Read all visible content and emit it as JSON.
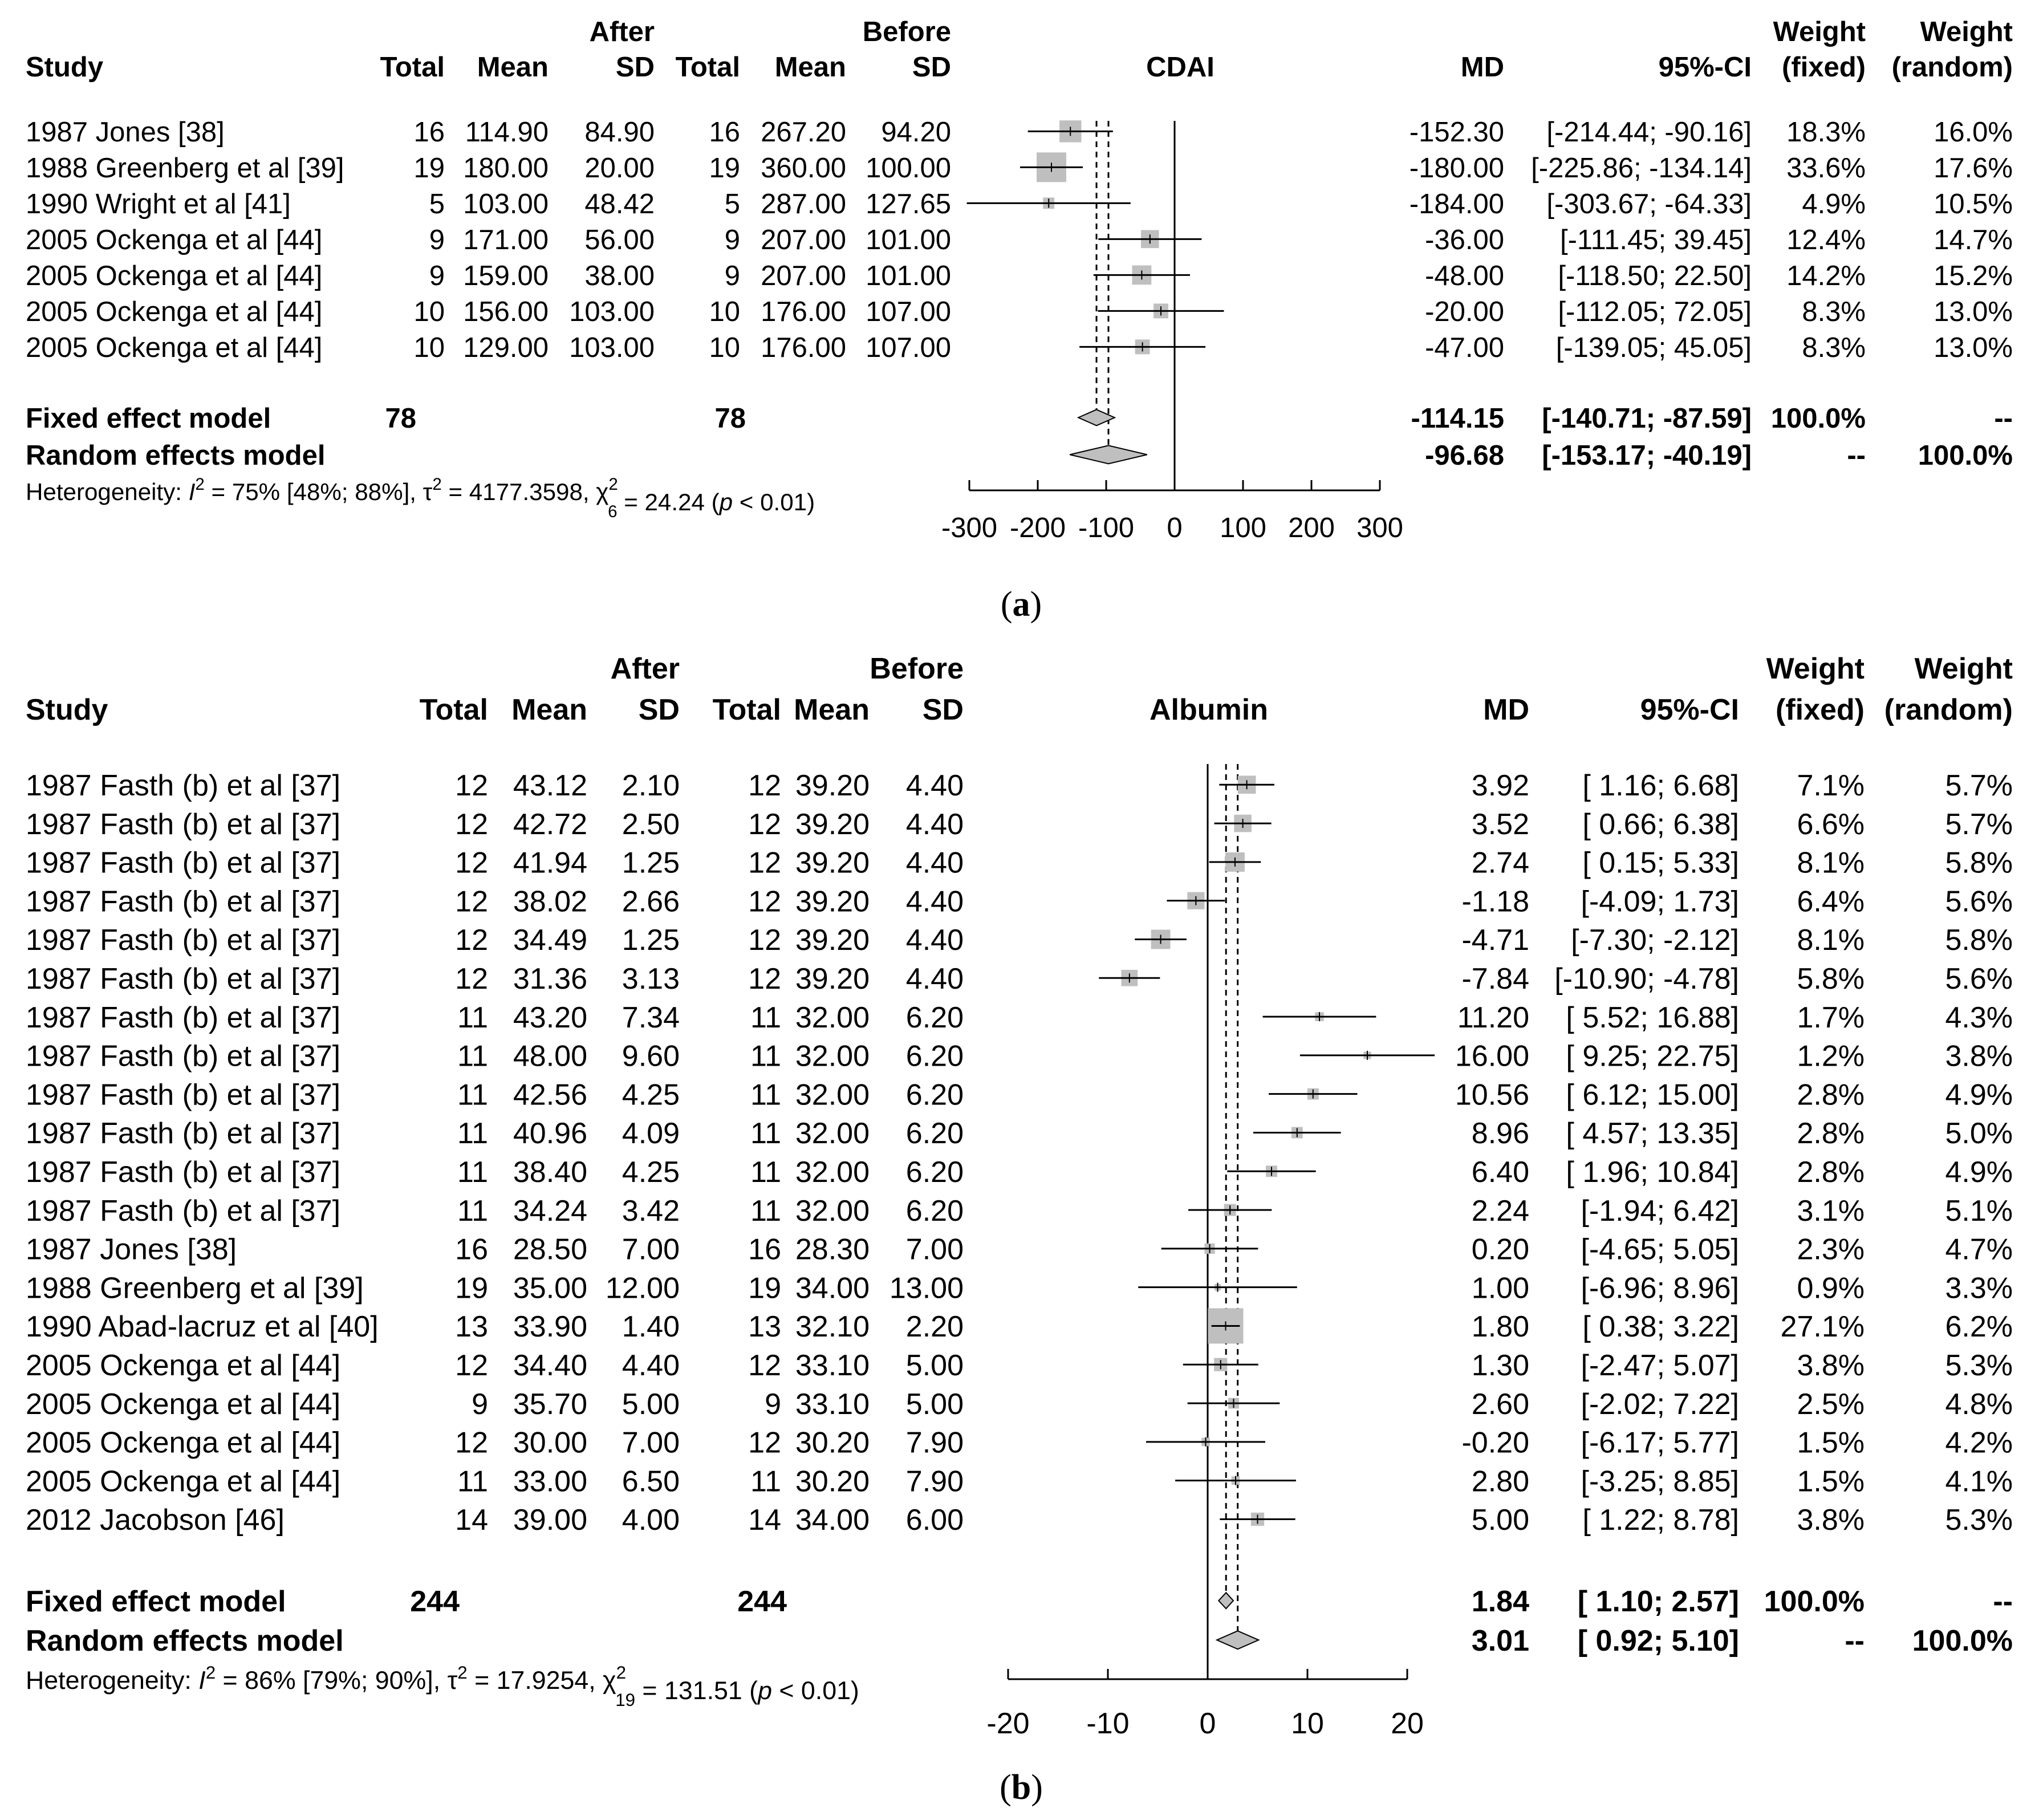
{
  "chart_data": [
    {
      "type": "forest",
      "caption": "(a)",
      "outcome": "CDAI",
      "headers": {
        "study": "Study",
        "group_after": "After",
        "group_before": "Before",
        "total": "Total",
        "mean": "Mean",
        "sd": "SD",
        "md": "MD",
        "ci": "95%-CI",
        "weight_label": "Weight",
        "weight_fixed": "(fixed)",
        "weight_random": "(random)"
      },
      "studies": [
        {
          "study": "1987 Jones [38]",
          "after_total": "16",
          "after_mean": "114.90",
          "after_sd": "84.90",
          "before_total": "16",
          "before_mean": "267.20",
          "before_sd": "94.20",
          "md_text": "-152.30",
          "ci_text": "[-214.44;  -90.16]",
          "w_fixed": "18.3%",
          "w_random": "16.0%",
          "md": -152.3,
          "lo": -214.44,
          "hi": -90.16,
          "wf": 18.3
        },
        {
          "study": "1988 Greenberg et al [39]",
          "after_total": "19",
          "after_mean": "180.00",
          "after_sd": "20.00",
          "before_total": "19",
          "before_mean": "360.00",
          "before_sd": "100.00",
          "md_text": "-180.00",
          "ci_text": "[-225.86; -134.14]",
          "w_fixed": "33.6%",
          "w_random": "17.6%",
          "md": -180.0,
          "lo": -225.86,
          "hi": -134.14,
          "wf": 33.6
        },
        {
          "study": "1990 Wright et al [41]",
          "after_total": "5",
          "after_mean": "103.00",
          "after_sd": "48.42",
          "before_total": "5",
          "before_mean": "287.00",
          "before_sd": "127.65",
          "md_text": "-184.00",
          "ci_text": "[-303.67;  -64.33]",
          "w_fixed": "4.9%",
          "w_random": "10.5%",
          "md": -184.0,
          "lo": -303.67,
          "hi": -64.33,
          "wf": 4.9
        },
        {
          "study": "2005 Ockenga et al [44]",
          "after_total": "9",
          "after_mean": "171.00",
          "after_sd": "56.00",
          "before_total": "9",
          "before_mean": "207.00",
          "before_sd": "101.00",
          "md_text": "-36.00",
          "ci_text": "[-111.45;   39.45]",
          "w_fixed": "12.4%",
          "w_random": "14.7%",
          "md": -36.0,
          "lo": -111.45,
          "hi": 39.45,
          "wf": 12.4
        },
        {
          "study": "2005 Ockenga et al [44]",
          "after_total": "9",
          "after_mean": "159.00",
          "after_sd": "38.00",
          "before_total": "9",
          "before_mean": "207.00",
          "before_sd": "101.00",
          "md_text": "-48.00",
          "ci_text": "[-118.50;   22.50]",
          "w_fixed": "14.2%",
          "w_random": "15.2%",
          "md": -48.0,
          "lo": -118.5,
          "hi": 22.5,
          "wf": 14.2
        },
        {
          "study": "2005 Ockenga et al [44]",
          "after_total": "10",
          "after_mean": "156.00",
          "after_sd": "103.00",
          "before_total": "10",
          "before_mean": "176.00",
          "before_sd": "107.00",
          "md_text": "-20.00",
          "ci_text": "[-112.05;   72.05]",
          "w_fixed": "8.3%",
          "w_random": "13.0%",
          "md": -20.0,
          "lo": -112.05,
          "hi": 72.05,
          "wf": 8.3
        },
        {
          "study": "2005 Ockenga et al [44]",
          "after_total": "10",
          "after_mean": "129.00",
          "after_sd": "103.00",
          "before_total": "10",
          "before_mean": "176.00",
          "before_sd": "107.00",
          "md_text": "-47.00",
          "ci_text": "[-139.05;   45.05]",
          "w_fixed": "8.3%",
          "w_random": "13.0%",
          "md": -47.0,
          "lo": -139.05,
          "hi": 45.05,
          "wf": 8.3
        }
      ],
      "fixed": {
        "label": "Fixed effect model",
        "after_total": "78",
        "before_total": "78",
        "md_text": "-114.15",
        "ci_text": "[-140.71;  -87.59]",
        "w_fixed": "100.0%",
        "w_random": "--",
        "md": -114.15,
        "lo": -140.71,
        "hi": -87.59
      },
      "random": {
        "label": "Random effects model",
        "md_text": "-96.68",
        "ci_text": "[-153.17;  -40.19]",
        "w_fixed": "--",
        "w_random": "100.0%",
        "md": -96.68,
        "lo": -153.17,
        "hi": -40.19
      },
      "heterogeneity": {
        "prefix": "Heterogeneity: ",
        "I2": "75%",
        "I2_ci": "[48%; 88%]",
        "tau2": "4177.3598",
        "df": "6",
        "chi2": "24.24",
        "p": "p < 0.01"
      },
      "xaxis": {
        "min": -300,
        "max": 300,
        "ticks": [
          -300,
          -200,
          -100,
          0,
          100,
          200,
          300
        ]
      }
    },
    {
      "type": "forest",
      "caption": "(b)",
      "outcome": "Albumin",
      "headers": {
        "study": "Study",
        "group_after": "After",
        "group_before": "Before",
        "total": "Total",
        "mean": "Mean",
        "sd": "SD",
        "md": "MD",
        "ci": "95%-CI",
        "weight_label": "Weight",
        "weight_fixed": "(fixed)",
        "weight_random": "(random)"
      },
      "studies": [
        {
          "study": "1987 Fasth (b) et al [37]",
          "after_total": "12",
          "after_mean": "43.12",
          "after_sd": "2.10",
          "before_total": "12",
          "before_mean": "39.20",
          "before_sd": "4.40",
          "md_text": "3.92",
          "ci_text": "[ 1.16;  6.68]",
          "w_fixed": "7.1%",
          "w_random": "5.7%",
          "md": 3.92,
          "lo": 1.16,
          "hi": 6.68,
          "wf": 7.1
        },
        {
          "study": "1987 Fasth (b) et al [37]",
          "after_total": "12",
          "after_mean": "42.72",
          "after_sd": "2.50",
          "before_total": "12",
          "before_mean": "39.20",
          "before_sd": "4.40",
          "md_text": "3.52",
          "ci_text": "[ 0.66;  6.38]",
          "w_fixed": "6.6%",
          "w_random": "5.7%",
          "md": 3.52,
          "lo": 0.66,
          "hi": 6.38,
          "wf": 6.6
        },
        {
          "study": "1987 Fasth (b) et al [37]",
          "after_total": "12",
          "after_mean": "41.94",
          "after_sd": "1.25",
          "before_total": "12",
          "before_mean": "39.20",
          "before_sd": "4.40",
          "md_text": "2.74",
          "ci_text": "[ 0.15;  5.33]",
          "w_fixed": "8.1%",
          "w_random": "5.8%",
          "md": 2.74,
          "lo": 0.15,
          "hi": 5.33,
          "wf": 8.1
        },
        {
          "study": "1987 Fasth (b) et al [37]",
          "after_total": "12",
          "after_mean": "38.02",
          "after_sd": "2.66",
          "before_total": "12",
          "before_mean": "39.20",
          "before_sd": "4.40",
          "md_text": "-1.18",
          "ci_text": "[-4.09;  1.73]",
          "w_fixed": "6.4%",
          "w_random": "5.6%",
          "md": -1.18,
          "lo": -4.09,
          "hi": 1.73,
          "wf": 6.4
        },
        {
          "study": "1987 Fasth (b) et al [37]",
          "after_total": "12",
          "after_mean": "34.49",
          "after_sd": "1.25",
          "before_total": "12",
          "before_mean": "39.20",
          "before_sd": "4.40",
          "md_text": "-4.71",
          "ci_text": "[-7.30; -2.12]",
          "w_fixed": "8.1%",
          "w_random": "5.8%",
          "md": -4.71,
          "lo": -7.3,
          "hi": -2.12,
          "wf": 8.1
        },
        {
          "study": "1987 Fasth (b) et al [37]",
          "after_total": "12",
          "after_mean": "31.36",
          "after_sd": "3.13",
          "before_total": "12",
          "before_mean": "39.20",
          "before_sd": "4.40",
          "md_text": "-7.84",
          "ci_text": "[-10.90; -4.78]",
          "w_fixed": "5.8%",
          "w_random": "5.6%",
          "md": -7.84,
          "lo": -10.9,
          "hi": -4.78,
          "wf": 5.8
        },
        {
          "study": "1987 Fasth (b) et al [37]",
          "after_total": "11",
          "after_mean": "43.20",
          "after_sd": "7.34",
          "before_total": "11",
          "before_mean": "32.00",
          "before_sd": "6.20",
          "md_text": "11.20",
          "ci_text": "[ 5.52; 16.88]",
          "w_fixed": "1.7%",
          "w_random": "4.3%",
          "md": 11.2,
          "lo": 5.52,
          "hi": 16.88,
          "wf": 1.7
        },
        {
          "study": "1987 Fasth (b) et al [37]",
          "after_total": "11",
          "after_mean": "48.00",
          "after_sd": "9.60",
          "before_total": "11",
          "before_mean": "32.00",
          "before_sd": "6.20",
          "md_text": "16.00",
          "ci_text": "[ 9.25; 22.75]",
          "w_fixed": "1.2%",
          "w_random": "3.8%",
          "md": 16.0,
          "lo": 9.25,
          "hi": 22.75,
          "wf": 1.2
        },
        {
          "study": "1987 Fasth (b) et al [37]",
          "after_total": "11",
          "after_mean": "42.56",
          "after_sd": "4.25",
          "before_total": "11",
          "before_mean": "32.00",
          "before_sd": "6.20",
          "md_text": "10.56",
          "ci_text": "[ 6.12; 15.00]",
          "w_fixed": "2.8%",
          "w_random": "4.9%",
          "md": 10.56,
          "lo": 6.12,
          "hi": 15.0,
          "wf": 2.8
        },
        {
          "study": "1987 Fasth (b) et al [37]",
          "after_total": "11",
          "after_mean": "40.96",
          "after_sd": "4.09",
          "before_total": "11",
          "before_mean": "32.00",
          "before_sd": "6.20",
          "md_text": "8.96",
          "ci_text": "[ 4.57; 13.35]",
          "w_fixed": "2.8%",
          "w_random": "5.0%",
          "md": 8.96,
          "lo": 4.57,
          "hi": 13.35,
          "wf": 2.8
        },
        {
          "study": "1987 Fasth (b) et al [37]",
          "after_total": "11",
          "after_mean": "38.40",
          "after_sd": "4.25",
          "before_total": "11",
          "before_mean": "32.00",
          "before_sd": "6.20",
          "md_text": "6.40",
          "ci_text": "[ 1.96; 10.84]",
          "w_fixed": "2.8%",
          "w_random": "4.9%",
          "md": 6.4,
          "lo": 1.96,
          "hi": 10.84,
          "wf": 2.8
        },
        {
          "study": "1987 Fasth (b) et al [37]",
          "after_total": "11",
          "after_mean": "34.24",
          "after_sd": "3.42",
          "before_total": "11",
          "before_mean": "32.00",
          "before_sd": "6.20",
          "md_text": "2.24",
          "ci_text": "[-1.94;  6.42]",
          "w_fixed": "3.1%",
          "w_random": "5.1%",
          "md": 2.24,
          "lo": -1.94,
          "hi": 6.42,
          "wf": 3.1
        },
        {
          "study": "1987 Jones [38]",
          "after_total": "16",
          "after_mean": "28.50",
          "after_sd": "7.00",
          "before_total": "16",
          "before_mean": "28.30",
          "before_sd": "7.00",
          "md_text": "0.20",
          "ci_text": "[-4.65;  5.05]",
          "w_fixed": "2.3%",
          "w_random": "4.7%",
          "md": 0.2,
          "lo": -4.65,
          "hi": 5.05,
          "wf": 2.3
        },
        {
          "study": "1988 Greenberg et al [39]",
          "after_total": "19",
          "after_mean": "35.00",
          "after_sd": "12.00",
          "before_total": "19",
          "before_mean": "34.00",
          "before_sd": "13.00",
          "md_text": "1.00",
          "ci_text": "[-6.96;  8.96]",
          "w_fixed": "0.9%",
          "w_random": "3.3%",
          "md": 1.0,
          "lo": -6.96,
          "hi": 8.96,
          "wf": 0.9
        },
        {
          "study": "1990 Abad-lacruz et al [40]",
          "after_total": "13",
          "after_mean": "33.90",
          "after_sd": "1.40",
          "before_total": "13",
          "before_mean": "32.10",
          "before_sd": "2.20",
          "md_text": "1.80",
          "ci_text": "[ 0.38;  3.22]",
          "w_fixed": "27.1%",
          "w_random": "6.2%",
          "md": 1.8,
          "lo": 0.38,
          "hi": 3.22,
          "wf": 27.1
        },
        {
          "study": "2005 Ockenga et al [44]",
          "after_total": "12",
          "after_mean": "34.40",
          "after_sd": "4.40",
          "before_total": "12",
          "before_mean": "33.10",
          "before_sd": "5.00",
          "md_text": "1.30",
          "ci_text": "[-2.47;  5.07]",
          "w_fixed": "3.8%",
          "w_random": "5.3%",
          "md": 1.3,
          "lo": -2.47,
          "hi": 5.07,
          "wf": 3.8
        },
        {
          "study": "2005 Ockenga et al [44]",
          "after_total": "9",
          "after_mean": "35.70",
          "after_sd": "5.00",
          "before_total": "9",
          "before_mean": "33.10",
          "before_sd": "5.00",
          "md_text": "2.60",
          "ci_text": "[-2.02;  7.22]",
          "w_fixed": "2.5%",
          "w_random": "4.8%",
          "md": 2.6,
          "lo": -2.02,
          "hi": 7.22,
          "wf": 2.5
        },
        {
          "study": "2005 Ockenga et al [44]",
          "after_total": "12",
          "after_mean": "30.00",
          "after_sd": "7.00",
          "before_total": "12",
          "before_mean": "30.20",
          "before_sd": "7.90",
          "md_text": "-0.20",
          "ci_text": "[-6.17;  5.77]",
          "w_fixed": "1.5%",
          "w_random": "4.2%",
          "md": -0.2,
          "lo": -6.17,
          "hi": 5.77,
          "wf": 1.5
        },
        {
          "study": "2005 Ockenga et al [44]",
          "after_total": "11",
          "after_mean": "33.00",
          "after_sd": "6.50",
          "before_total": "11",
          "before_mean": "30.20",
          "before_sd": "7.90",
          "md_text": "2.80",
          "ci_text": "[-3.25;  8.85]",
          "w_fixed": "1.5%",
          "w_random": "4.1%",
          "md": 2.8,
          "lo": -3.25,
          "hi": 8.85,
          "wf": 1.5
        },
        {
          "study": "2012 Jacobson [46]",
          "after_total": "14",
          "after_mean": "39.00",
          "after_sd": "4.00",
          "before_total": "14",
          "before_mean": "34.00",
          "before_sd": "6.00",
          "md_text": "5.00",
          "ci_text": "[ 1.22;  8.78]",
          "w_fixed": "3.8%",
          "w_random": "5.3%",
          "md": 5.0,
          "lo": 1.22,
          "hi": 8.78,
          "wf": 3.8
        }
      ],
      "fixed": {
        "label": "Fixed effect model",
        "after_total": "244",
        "before_total": "244",
        "md_text": "1.84",
        "ci_text": "[ 1.10;  2.57]",
        "w_fixed": "100.0%",
        "w_random": "--",
        "md": 1.84,
        "lo": 1.1,
        "hi": 2.57
      },
      "random": {
        "label": "Random effects model",
        "md_text": "3.01",
        "ci_text": "[ 0.92;  5.10]",
        "w_fixed": "--",
        "w_random": "100.0%",
        "md": 3.01,
        "lo": 0.92,
        "hi": 5.1
      },
      "heterogeneity": {
        "prefix": "Heterogeneity: ",
        "I2": "86%",
        "I2_ci": "[79%; 90%]",
        "tau2": "17.9254",
        "df": "19",
        "chi2": "131.51",
        "p": "p < 0.01"
      },
      "xaxis": {
        "min": -20,
        "max": 20,
        "ticks": [
          -20,
          -10,
          0,
          10,
          20
        ]
      }
    }
  ]
}
